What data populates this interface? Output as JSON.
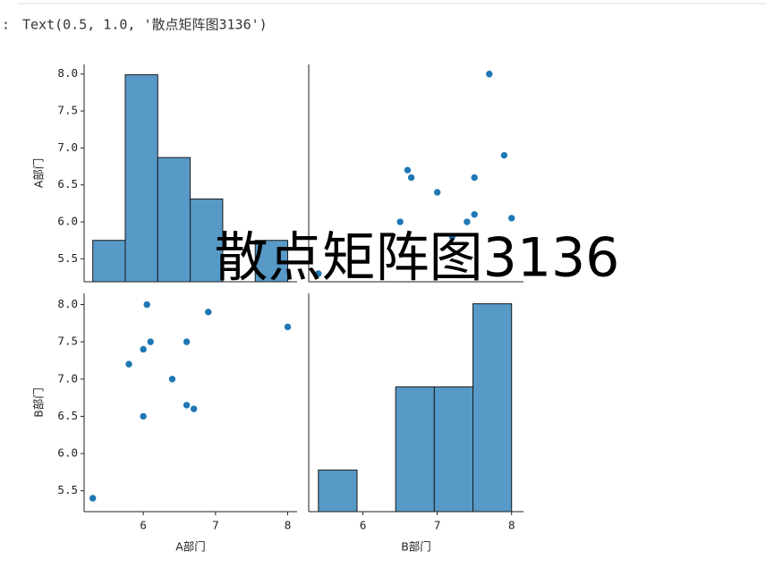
{
  "prompt": ":",
  "output_text": "Text(0.5, 1.0, '散点矩阵图3136')",
  "figure": {
    "title": "散点矩阵图3136"
  },
  "chart_data": [
    {
      "type": "histogram",
      "ylabel": "A部门",
      "bins": [
        5.3,
        5.75,
        6.2,
        6.65,
        7.1,
        7.55,
        8.0
      ],
      "values": [
        1,
        5,
        3,
        2,
        0,
        1
      ],
      "color": "#5799c7",
      "xlim": [
        5.18,
        8.13
      ],
      "ylim": [
        5.19,
        8.13
      ],
      "y2lim": [
        0,
        5.25
      ],
      "yticks": [
        5.5,
        {
          "value": 6,
          "label": "6.0"
        },
        6.5,
        {
          "value": 7,
          "label": "7.0"
        },
        7.5,
        {
          "value": 8,
          "label": "8.0"
        }
      ]
    },
    {
      "type": "scatter",
      "color": "#1f77b4",
      "x": [
        5.4,
        6.5,
        7.4,
        7.2,
        8.0,
        7.5,
        7.0,
        7.5,
        6.65,
        6.6,
        7.9,
        7.7
      ],
      "y": [
        5.3,
        6.0,
        6.0,
        5.8,
        6.05,
        6.1,
        6.4,
        6.6,
        6.6,
        6.7,
        6.9,
        8.0
      ],
      "xlim": [
        5.27,
        8.16
      ],
      "ylim": [
        5.19,
        8.13
      ]
    },
    {
      "type": "scatter",
      "color": "#1f77b4",
      "xlabel": "A部门",
      "ylabel": "B部门",
      "x": [
        5.3,
        6.0,
        6.0,
        5.8,
        6.05,
        6.1,
        6.4,
        6.6,
        6.6,
        6.7,
        6.9,
        8.0
      ],
      "y": [
        5.4,
        6.5,
        7.4,
        7.2,
        8.0,
        7.5,
        7.0,
        7.5,
        6.65,
        6.6,
        7.9,
        7.7
      ],
      "xlim": [
        5.18,
        8.13
      ],
      "ylim": [
        5.22,
        8.15
      ],
      "xticks": [
        6,
        7,
        8
      ],
      "yticks": [
        5.5,
        {
          "value": 6,
          "label": "6.0"
        },
        6.5,
        {
          "value": 7,
          "label": "7.0"
        },
        7.5,
        {
          "value": 8,
          "label": "8.0"
        }
      ]
    },
    {
      "type": "histogram",
      "xlabel": "B部门",
      "bins": [
        5.4,
        5.92,
        6.44,
        6.96,
        7.48,
        8.0
      ],
      "values": [
        1,
        0,
        3,
        3,
        5
      ],
      "color": "#5799c7",
      "xlim": [
        5.27,
        8.16
      ],
      "y2lim": [
        0,
        5.25
      ],
      "xticks": [
        6,
        7,
        8
      ]
    }
  ]
}
